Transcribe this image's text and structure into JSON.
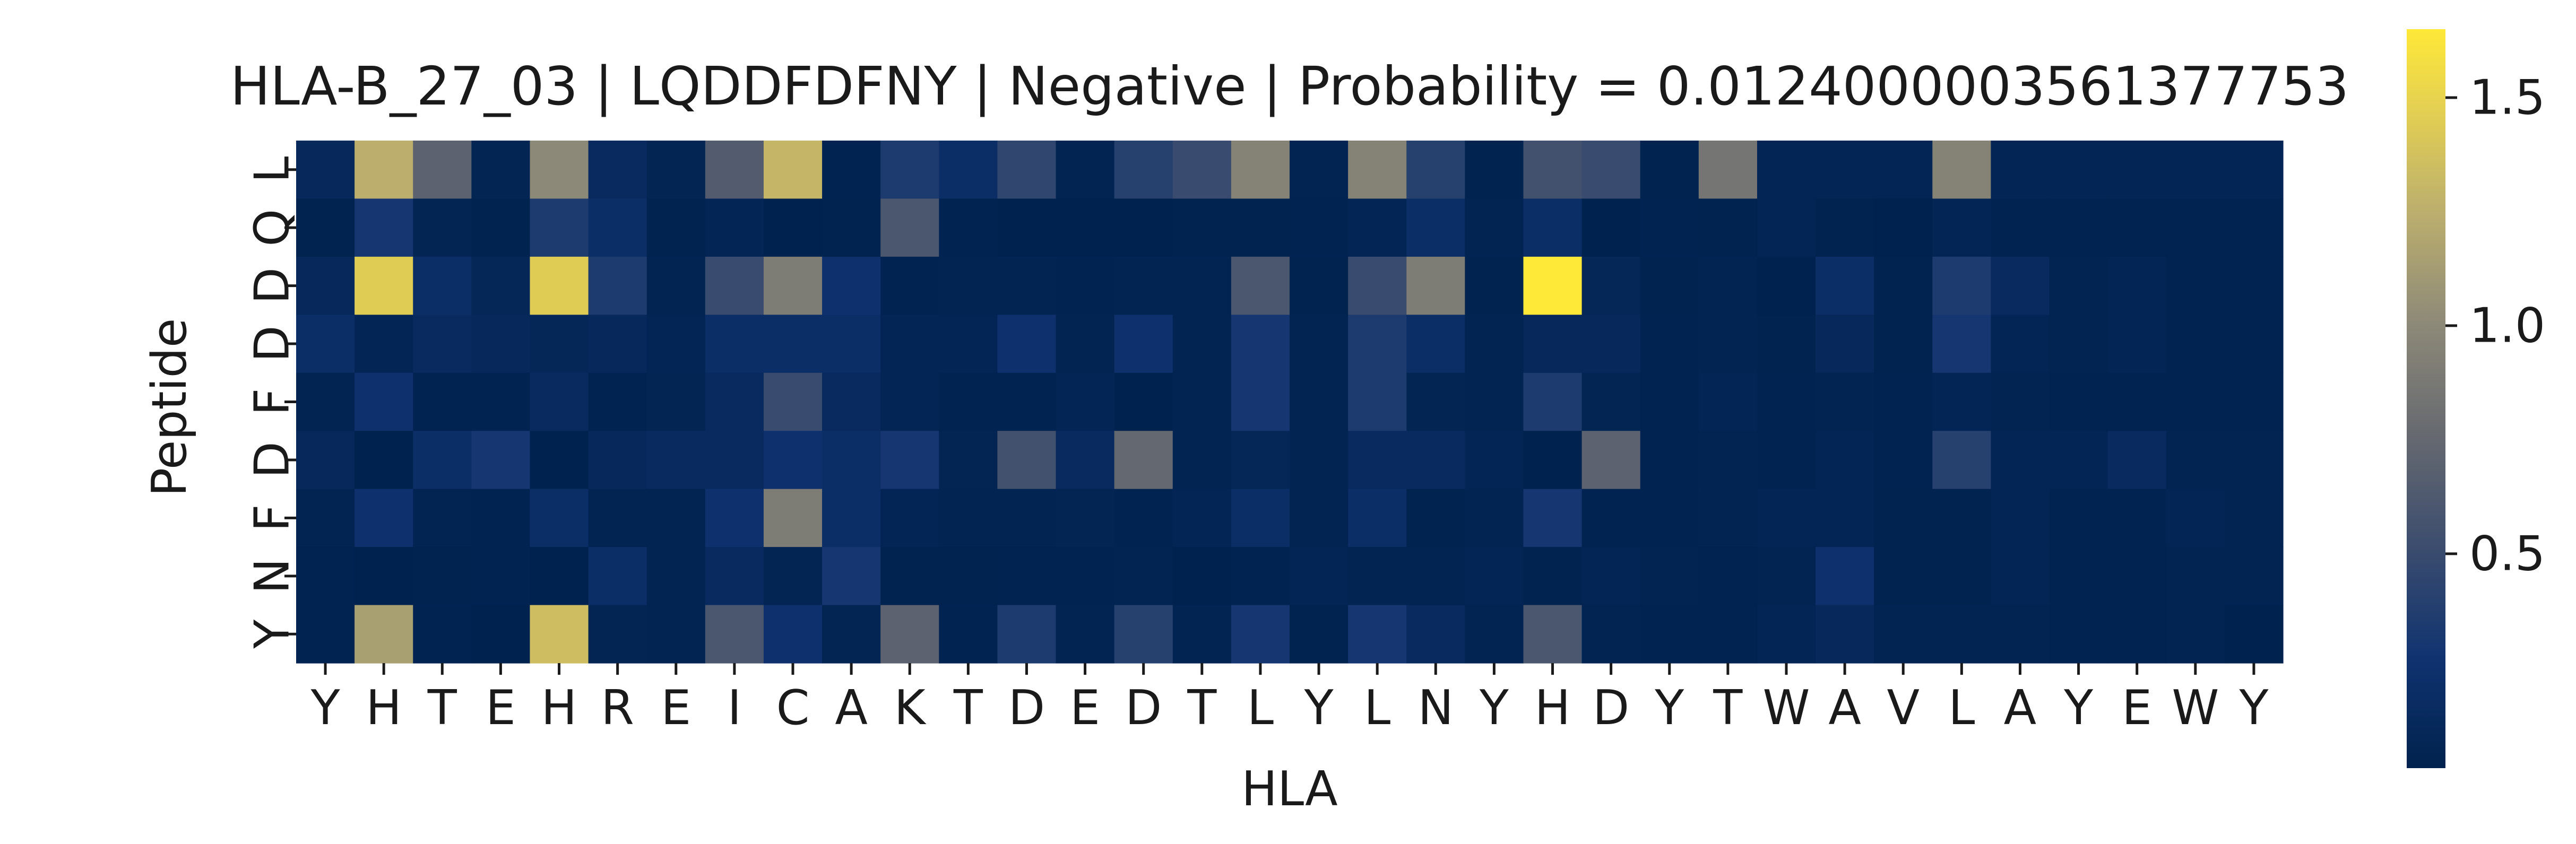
{
  "chart_data": {
    "type": "heatmap",
    "title": "HLA-B_27_03 | LQDDFDFNY | Negative | Probability = 0.0124000003561377753",
    "xlabel": "HLA",
    "ylabel": "Peptide",
    "x_ticks": [
      "Y",
      "H",
      "T",
      "E",
      "H",
      "R",
      "E",
      "I",
      "C",
      "A",
      "K",
      "T",
      "D",
      "E",
      "D",
      "T",
      "L",
      "Y",
      "L",
      "N",
      "Y",
      "H",
      "D",
      "Y",
      "T",
      "W",
      "A",
      "V",
      "L",
      "A",
      "Y",
      "E",
      "W",
      "Y"
    ],
    "y_ticks": [
      "L",
      "Q",
      "D",
      "D",
      "F",
      "D",
      "F",
      "N",
      "Y"
    ],
    "colormap": "cividis",
    "colorbar": {
      "min": 0.03,
      "max": 1.65,
      "ticks": [
        0.5,
        1.0,
        1.5
      ],
      "tick_labels": [
        "0.5",
        "1.0",
        "1.5"
      ]
    },
    "values": [
      [
        0.12,
        1.25,
        0.7,
        0.07,
        1.0,
        0.15,
        0.07,
        0.65,
        1.3,
        0.05,
        0.35,
        0.2,
        0.45,
        0.06,
        0.4,
        0.5,
        0.95,
        0.06,
        0.95,
        0.4,
        0.04,
        0.55,
        0.5,
        0.04,
        0.85,
        0.08,
        0.08,
        0.08,
        0.95,
        0.08,
        0.08,
        0.08,
        0.08,
        0.08
      ],
      [
        0.04,
        0.3,
        0.07,
        0.04,
        0.35,
        0.2,
        0.04,
        0.08,
        0.03,
        0.04,
        0.6,
        0.05,
        0.03,
        0.03,
        0.03,
        0.04,
        0.04,
        0.05,
        0.08,
        0.2,
        0.06,
        0.2,
        0.02,
        0.05,
        0.04,
        0.08,
        0.04,
        0.03,
        0.08,
        0.05,
        0.05,
        0.05,
        0.05,
        0.05
      ],
      [
        0.12,
        1.45,
        0.2,
        0.1,
        1.45,
        0.35,
        0.06,
        0.5,
        0.9,
        0.25,
        0.05,
        0.06,
        0.06,
        0.05,
        0.06,
        0.06,
        0.6,
        0.04,
        0.5,
        0.9,
        0.04,
        1.65,
        0.1,
        0.04,
        0.06,
        0.03,
        0.2,
        0.04,
        0.35,
        0.15,
        0.06,
        0.08,
        0.05,
        0.05
      ],
      [
        0.2,
        0.08,
        0.15,
        0.12,
        0.1,
        0.12,
        0.08,
        0.2,
        0.2,
        0.2,
        0.08,
        0.08,
        0.25,
        0.06,
        0.25,
        0.06,
        0.3,
        0.06,
        0.35,
        0.2,
        0.06,
        0.12,
        0.12,
        0.05,
        0.06,
        0.04,
        0.12,
        0.04,
        0.3,
        0.08,
        0.06,
        0.08,
        0.05,
        0.05
      ],
      [
        0.06,
        0.25,
        0.05,
        0.05,
        0.15,
        0.05,
        0.07,
        0.15,
        0.5,
        0.15,
        0.08,
        0.05,
        0.05,
        0.08,
        0.03,
        0.06,
        0.3,
        0.06,
        0.35,
        0.07,
        0.06,
        0.35,
        0.07,
        0.05,
        0.08,
        0.05,
        0.06,
        0.05,
        0.08,
        0.06,
        0.05,
        0.05,
        0.05,
        0.05
      ],
      [
        0.12,
        0.02,
        0.2,
        0.3,
        0.03,
        0.12,
        0.15,
        0.15,
        0.25,
        0.2,
        0.3,
        0.07,
        0.55,
        0.15,
        0.75,
        0.06,
        0.1,
        0.06,
        0.15,
        0.15,
        0.08,
        0.02,
        0.7,
        0.05,
        0.06,
        0.05,
        0.08,
        0.05,
        0.4,
        0.08,
        0.08,
        0.15,
        0.06,
        0.06
      ],
      [
        0.06,
        0.25,
        0.06,
        0.05,
        0.2,
        0.06,
        0.06,
        0.25,
        0.9,
        0.2,
        0.08,
        0.06,
        0.06,
        0.07,
        0.05,
        0.08,
        0.2,
        0.06,
        0.2,
        0.04,
        0.06,
        0.3,
        0.05,
        0.05,
        0.06,
        0.08,
        0.08,
        0.04,
        0.04,
        0.08,
        0.05,
        0.05,
        0.08,
        0.06
      ],
      [
        0.05,
        0.03,
        0.04,
        0.05,
        0.03,
        0.2,
        0.06,
        0.15,
        0.07,
        0.3,
        0.04,
        0.04,
        0.05,
        0.05,
        0.06,
        0.03,
        0.05,
        0.08,
        0.06,
        0.06,
        0.08,
        0.04,
        0.08,
        0.06,
        0.05,
        0.06,
        0.25,
        0.04,
        0.04,
        0.08,
        0.05,
        0.05,
        0.06,
        0.06
      ],
      [
        0.05,
        1.15,
        0.05,
        0.03,
        1.35,
        0.07,
        0.06,
        0.6,
        0.25,
        0.07,
        0.7,
        0.05,
        0.35,
        0.06,
        0.4,
        0.06,
        0.3,
        0.04,
        0.3,
        0.15,
        0.06,
        0.6,
        0.06,
        0.05,
        0.05,
        0.08,
        0.12,
        0.06,
        0.06,
        0.06,
        0.05,
        0.05,
        0.06,
        0.03
      ]
    ]
  }
}
